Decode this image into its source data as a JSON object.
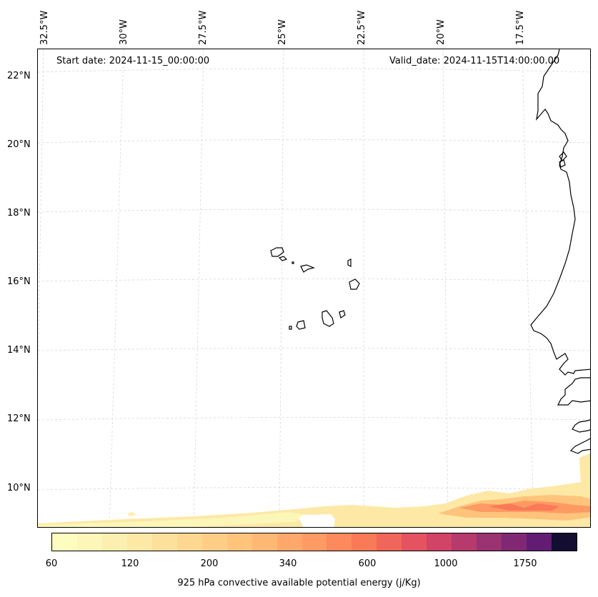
{
  "map": {
    "start_date": "Start date: 2024-11-15_00:00:00",
    "valid_date": "Valid_date: 2024-11-15T14:00:00.00",
    "lon_labels": [
      "32.5°W",
      "30°W",
      "27.5°W",
      "25°W",
      "22.5°W",
      "20°W",
      "17.5°W"
    ],
    "lat_labels": [
      "22°N",
      "20°N",
      "18°N",
      "16°N",
      "14°N",
      "12°N",
      "10°N"
    ],
    "land_edge_color": "#000000",
    "gridline_color": "#cccccc"
  },
  "colorbar": {
    "label": "925 hPa convective available potential energy (j/Kg)",
    "ticks": [
      "60",
      "120",
      "200",
      "340",
      "600",
      "1000",
      "1750"
    ],
    "colors": [
      "#fcfdbf",
      "#fcf6b8",
      "#fcefb0",
      "#fde8a6",
      "#fde09c",
      "#fed791",
      "#fece86",
      "#fec47c",
      "#feb873",
      "#fea96b",
      "#fe9a63",
      "#fc8a5c",
      "#f97a57",
      "#f1665a",
      "#e4535f",
      "#d14466",
      "#b73a6d",
      "#9b3271",
      "#812874",
      "#621c74",
      "#120d31"
    ],
    "colormap": "magma_r"
  }
}
